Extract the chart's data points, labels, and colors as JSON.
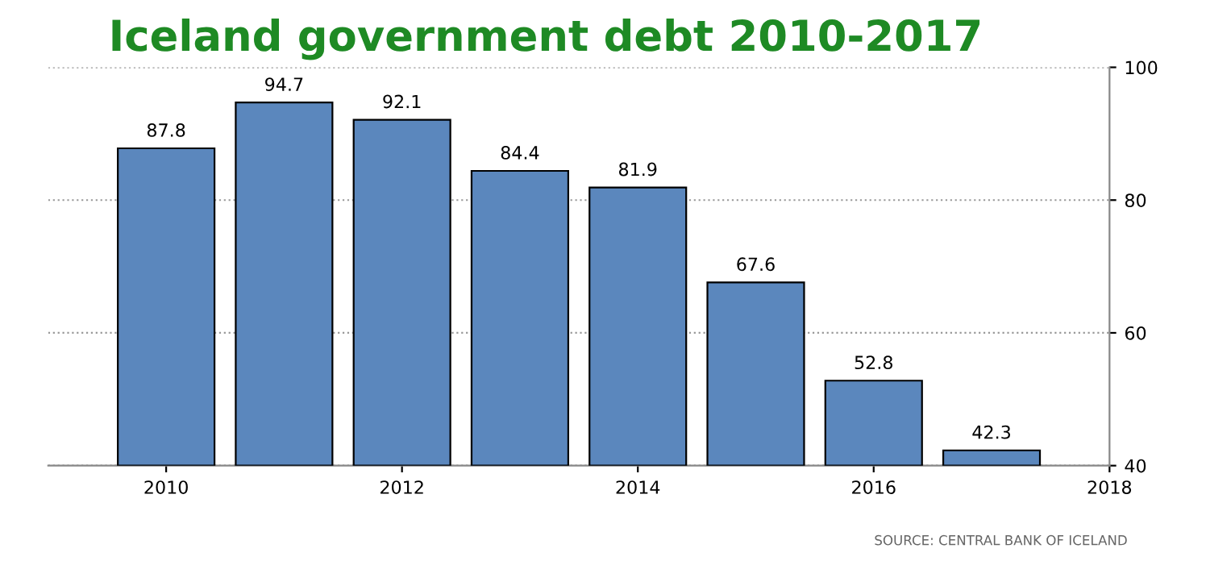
{
  "chart_data": {
    "type": "bar",
    "title": "Iceland government debt 2010-2017",
    "x": [
      2010,
      2011,
      2012,
      2013,
      2014,
      2015,
      2016,
      2017
    ],
    "values": [
      87.8,
      94.7,
      92.1,
      84.4,
      81.9,
      67.6,
      52.8,
      42.3
    ],
    "color": "#5b87bd",
    "data_labels": true,
    "xlim": [
      2009,
      2018
    ],
    "xticks": [
      2010,
      2012,
      2014,
      2016,
      2018
    ],
    "ylim": [
      40,
      100
    ],
    "yticks": [
      40,
      60,
      80,
      100
    ],
    "grid": "y",
    "annotations": [
      "SOURCE: CENTRAL BANK OF ICELAND"
    ]
  }
}
